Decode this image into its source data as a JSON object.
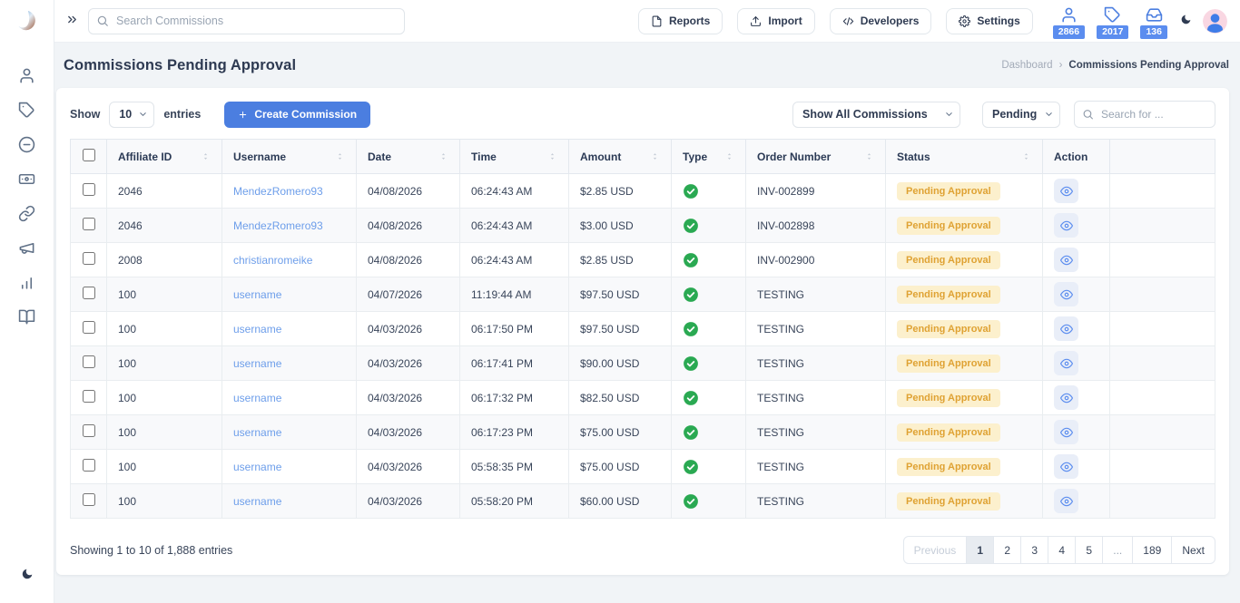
{
  "brand": {
    "logo_icon": "brand-logo"
  },
  "topbar": {
    "collapse_icon": "chevrons-right-icon",
    "search": {
      "placeholder": "Search Commissions"
    },
    "actions": [
      {
        "id": "reports",
        "label": "Reports",
        "icon": "file-icon"
      },
      {
        "id": "import",
        "label": "Import",
        "icon": "upload-icon"
      },
      {
        "id": "developers",
        "label": "Developers",
        "icon": "code-icon"
      },
      {
        "id": "settings",
        "label": "Settings",
        "icon": "gear-icon"
      }
    ],
    "counters": [
      {
        "id": "affiliates",
        "icon": "user-icon",
        "count": "2866"
      },
      {
        "id": "tags",
        "icon": "tag-icon",
        "count": "2017"
      },
      {
        "id": "inbox",
        "icon": "inbox-icon",
        "count": "136"
      }
    ],
    "theme_icon": "moon-icon",
    "avatar_icon": "avatar-icon"
  },
  "sidebar": {
    "items": [
      {
        "id": "affiliates",
        "icon": "user-icon"
      },
      {
        "id": "tags",
        "icon": "tag-icon"
      },
      {
        "id": "commissions",
        "icon": "circle-minus-icon"
      },
      {
        "id": "payouts",
        "icon": "banknote-icon"
      },
      {
        "id": "links",
        "icon": "link-icon"
      },
      {
        "id": "campaigns",
        "icon": "megaphone-icon"
      },
      {
        "id": "reports",
        "icon": "bar-chart-icon"
      },
      {
        "id": "docs",
        "icon": "book-open-icon"
      }
    ],
    "bottom_icon": "moon-icon"
  },
  "page": {
    "title": "Commissions Pending Approval",
    "breadcrumb": {
      "parent": "Dashboard",
      "separator": "›",
      "current": "Commissions Pending Approval"
    }
  },
  "controls": {
    "show_label": "Show",
    "page_size": "10",
    "entries_label": "entries",
    "create_button": {
      "icon": "plus-icon",
      "label": "Create Commission"
    },
    "filter_all": "Show All Commissions",
    "filter_status": "Pending",
    "search_placeholder": "Search for ..."
  },
  "table": {
    "columns": [
      {
        "label": "Affiliate ID",
        "sortable": true
      },
      {
        "label": "Username",
        "sortable": true
      },
      {
        "label": "Date",
        "sortable": true
      },
      {
        "label": "Time",
        "sortable": true
      },
      {
        "label": "Amount",
        "sortable": true
      },
      {
        "label": "Type",
        "sortable": true
      },
      {
        "label": "Order Number",
        "sortable": true
      },
      {
        "label": "Status",
        "sortable": true
      },
      {
        "label": "Action",
        "sortable": false
      }
    ],
    "type_icon": "check-circle-icon",
    "action_icon": "eye-icon",
    "rows": [
      {
        "affiliate_id": "2046",
        "username": "MendezRomero93",
        "date": "04/08/2026",
        "time": "06:24:43 AM",
        "amount": "$2.85 USD",
        "order": "INV-002899",
        "status": "Pending Approval"
      },
      {
        "affiliate_id": "2046",
        "username": "MendezRomero93",
        "date": "04/08/2026",
        "time": "06:24:43 AM",
        "amount": "$3.00 USD",
        "order": "INV-002898",
        "status": "Pending Approval"
      },
      {
        "affiliate_id": "2008",
        "username": "christianromeike",
        "date": "04/08/2026",
        "time": "06:24:43 AM",
        "amount": "$2.85 USD",
        "order": "INV-002900",
        "status": "Pending Approval"
      },
      {
        "affiliate_id": "100",
        "username": "username",
        "date": "04/07/2026",
        "time": "11:19:44 AM",
        "amount": "$97.50 USD",
        "order": "TESTING",
        "status": "Pending Approval"
      },
      {
        "affiliate_id": "100",
        "username": "username",
        "date": "04/03/2026",
        "time": "06:17:50 PM",
        "amount": "$97.50 USD",
        "order": "TESTING",
        "status": "Pending Approval"
      },
      {
        "affiliate_id": "100",
        "username": "username",
        "date": "04/03/2026",
        "time": "06:17:41 PM",
        "amount": "$90.00 USD",
        "order": "TESTING",
        "status": "Pending Approval"
      },
      {
        "affiliate_id": "100",
        "username": "username",
        "date": "04/03/2026",
        "time": "06:17:32 PM",
        "amount": "$82.50 USD",
        "order": "TESTING",
        "status": "Pending Approval"
      },
      {
        "affiliate_id": "100",
        "username": "username",
        "date": "04/03/2026",
        "time": "06:17:23 PM",
        "amount": "$75.00 USD",
        "order": "TESTING",
        "status": "Pending Approval"
      },
      {
        "affiliate_id": "100",
        "username": "username",
        "date": "04/03/2026",
        "time": "05:58:35 PM",
        "amount": "$75.00 USD",
        "order": "TESTING",
        "status": "Pending Approval"
      },
      {
        "affiliate_id": "100",
        "username": "username",
        "date": "04/03/2026",
        "time": "05:58:20 PM",
        "amount": "$60.00 USD",
        "order": "TESTING",
        "status": "Pending Approval"
      }
    ]
  },
  "footer": {
    "showing": "Showing 1 to 10 of 1,888 entries",
    "pagination": {
      "prev": "Previous",
      "pages": [
        "1",
        "2",
        "3",
        "4",
        "5",
        "...",
        "189"
      ],
      "active": "1",
      "next": "Next"
    }
  },
  "colors": {
    "accent_blue": "#4b7ee0",
    "badge_blue": "#5b8def",
    "link_blue": "#6d9eea",
    "status_bg": "#fcf0cd",
    "status_text": "#dfa233",
    "success_green": "#2aa952",
    "page_bg": "#f1f4f7"
  }
}
